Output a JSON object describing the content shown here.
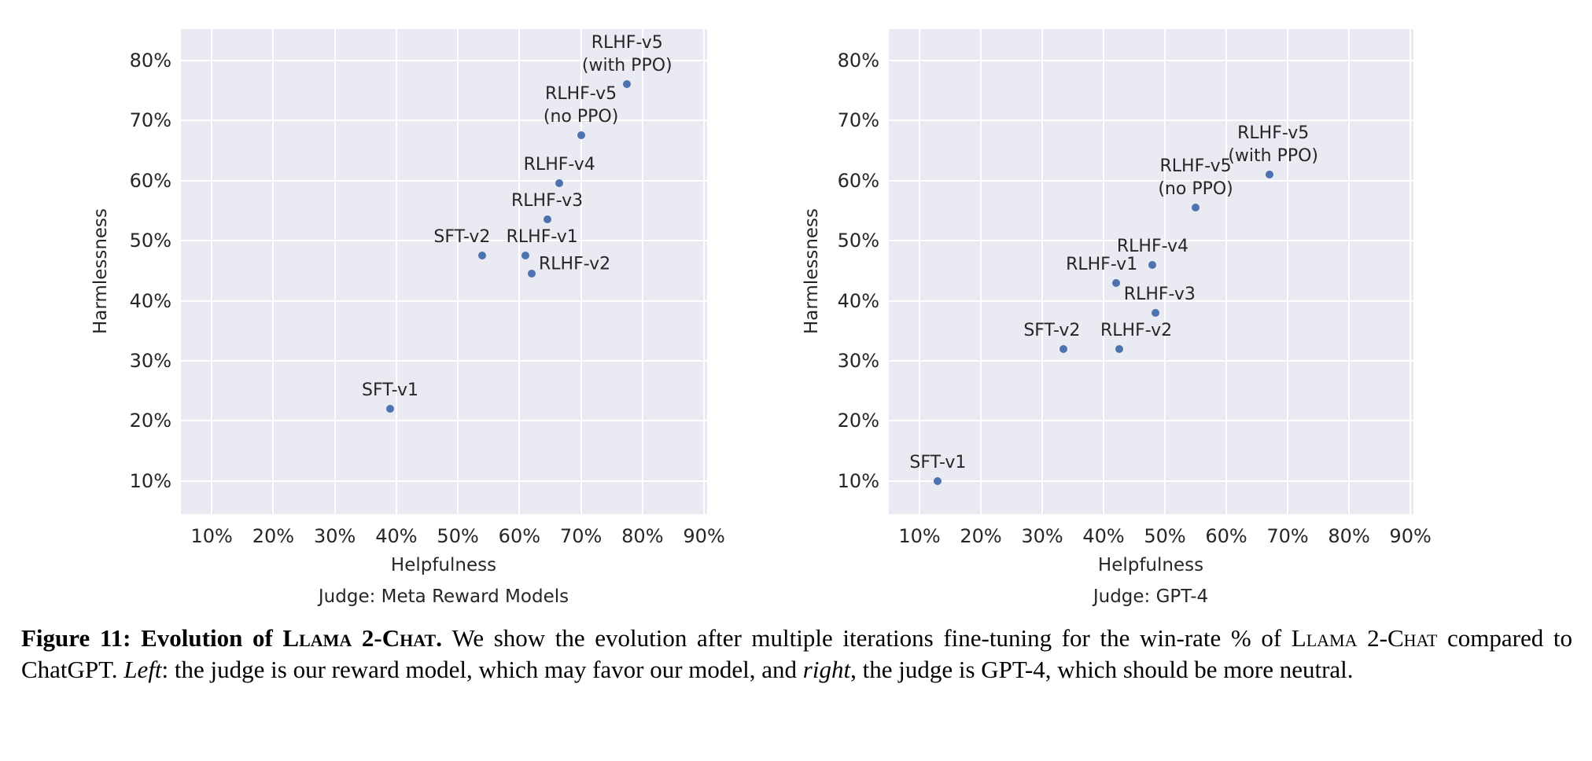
{
  "caption": {
    "segments": [
      {
        "text": "Figure 11: Evolution of ",
        "style": "bold"
      },
      {
        "text": "Llama 2-Chat",
        "style": "bold-smallcaps"
      },
      {
        "text": ". ",
        "style": "bold"
      },
      {
        "text": "We show the evolution after multiple iterations fine-tuning for the win-rate % of ",
        "style": "normal"
      },
      {
        "text": "Llama 2-Chat",
        "style": "smallcaps"
      },
      {
        "text": " compared to ChatGPT. ",
        "style": "normal"
      },
      {
        "text": "Left",
        "style": "italic"
      },
      {
        "text": ": the judge is our reward model, which may favor our model, and ",
        "style": "normal"
      },
      {
        "text": "right",
        "style": "italic"
      },
      {
        "text": ", the judge is GPT-4, which should be more neutral.",
        "style": "normal"
      }
    ]
  },
  "chart_data": [
    {
      "type": "scatter",
      "title": "",
      "xlabel": "Helpfulness",
      "xlabel_line2": "Judge: Meta Reward Models",
      "ylabel": "Harmlessness",
      "xlim": [
        5,
        90.5
      ],
      "ylim": [
        4.5,
        85.2
      ],
      "x_tick_values": [
        10,
        20,
        30,
        40,
        50,
        60,
        70,
        80,
        90
      ],
      "x_tick_labels": [
        "10%",
        "20%",
        "30%",
        "40%",
        "50%",
        "60%",
        "70%",
        "80%",
        "90%"
      ],
      "y_tick_values": [
        10,
        20,
        30,
        40,
        50,
        60,
        70,
        80
      ],
      "y_tick_labels": [
        "10%",
        "20%",
        "30%",
        "40%",
        "50%",
        "60%",
        "70%",
        "80%"
      ],
      "grid": true,
      "legend": "none",
      "background_color": "#eaeaf2",
      "grid_color": "#ffffff",
      "point_color": "#4c72b0",
      "points": [
        {
          "label": "SFT-v1",
          "x": 39,
          "y": 22,
          "label_lines": [
            "SFT-v1"
          ],
          "placement": "above",
          "dx": 0
        },
        {
          "label": "SFT-v2",
          "x": 54,
          "y": 47.5,
          "label_lines": [
            "SFT-v2"
          ],
          "placement": "above",
          "dx": -26
        },
        {
          "label": "RLHF-v1",
          "x": 61,
          "y": 47.5,
          "label_lines": [
            "RLHF-v1"
          ],
          "placement": "above",
          "dx": 21
        },
        {
          "label": "RLHF-v2",
          "x": 62,
          "y": 44.5,
          "label_lines": [
            "RLHF-v2"
          ],
          "placement": "right",
          "dx": 0
        },
        {
          "label": "RLHF-v3",
          "x": 64.5,
          "y": 53.5,
          "label_lines": [
            "RLHF-v3"
          ],
          "placement": "above",
          "dx": 0
        },
        {
          "label": "RLHF-v4",
          "x": 66.5,
          "y": 59.5,
          "label_lines": [
            "RLHF-v4"
          ],
          "placement": "above",
          "dx": 0
        },
        {
          "label": "RLHF-v5 (no PPO)",
          "x": 70,
          "y": 67.5,
          "label_lines": [
            "RLHF-v5",
            "(no PPO)"
          ],
          "placement": "above",
          "dx": 0
        },
        {
          "label": "RLHF-v5 (with PPO)",
          "x": 77.5,
          "y": 76,
          "label_lines": [
            "RLHF-v5",
            "(with PPO)"
          ],
          "placement": "above",
          "dx": 0
        }
      ]
    },
    {
      "type": "scatter",
      "title": "",
      "xlabel": "Helpfulness",
      "xlabel_line2": "Judge: GPT-4",
      "ylabel": "Harmlessness",
      "xlim": [
        5,
        90.5
      ],
      "ylim": [
        4.5,
        85.2
      ],
      "x_tick_values": [
        10,
        20,
        30,
        40,
        50,
        60,
        70,
        80,
        90
      ],
      "x_tick_labels": [
        "10%",
        "20%",
        "30%",
        "40%",
        "50%",
        "60%",
        "70%",
        "80%",
        "90%"
      ],
      "y_tick_values": [
        10,
        20,
        30,
        40,
        50,
        60,
        70,
        80
      ],
      "y_tick_labels": [
        "10%",
        "20%",
        "30%",
        "40%",
        "50%",
        "60%",
        "70%",
        "80%"
      ],
      "grid": true,
      "legend": "none",
      "background_color": "#eaeaf2",
      "grid_color": "#ffffff",
      "point_color": "#4c72b0",
      "points": [
        {
          "label": "SFT-v1",
          "x": 13,
          "y": 10,
          "label_lines": [
            "SFT-v1"
          ],
          "placement": "above",
          "dx": 0
        },
        {
          "label": "SFT-v2",
          "x": 33.5,
          "y": 32,
          "label_lines": [
            "SFT-v2"
          ],
          "placement": "above",
          "dx": -15
        },
        {
          "label": "RLHF-v2",
          "x": 42.5,
          "y": 32,
          "label_lines": [
            "RLHF-v2"
          ],
          "placement": "above",
          "dx": 22
        },
        {
          "label": "RLHF-v1",
          "x": 42,
          "y": 43,
          "label_lines": [
            "RLHF-v1"
          ],
          "placement": "above",
          "dx": -18
        },
        {
          "label": "RLHF-v3",
          "x": 48.5,
          "y": 38,
          "label_lines": [
            "RLHF-v3"
          ],
          "placement": "above",
          "dx": 5
        },
        {
          "label": "RLHF-v4",
          "x": 48,
          "y": 46,
          "label_lines": [
            "RLHF-v4"
          ],
          "placement": "above",
          "dx": 0
        },
        {
          "label": "RLHF-v5 (no PPO)",
          "x": 55,
          "y": 55.5,
          "label_lines": [
            "RLHF-v5",
            "(no PPO)"
          ],
          "placement": "above",
          "dx": 0
        },
        {
          "label": "RLHF-v5 (with PPO)",
          "x": 67,
          "y": 61,
          "label_lines": [
            "RLHF-v5",
            "(with PPO)"
          ],
          "placement": "above",
          "dx": 5
        }
      ]
    }
  ]
}
